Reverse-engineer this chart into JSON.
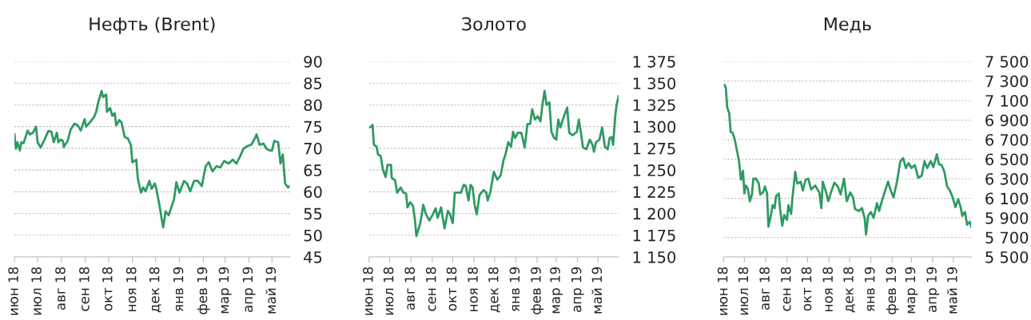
{
  "chart_data": [
    {
      "type": "line",
      "title": "Нефть (Brent)",
      "grid": "y",
      "xlim": [
        "2018-06-01",
        "2019-05-24"
      ],
      "ylim": [
        45,
        90
      ],
      "yticks": [
        45,
        50,
        55,
        60,
        65,
        70,
        75,
        80,
        85,
        90
      ],
      "xticks": [
        {
          "value": "2018-06-01",
          "label": "июн 18"
        },
        {
          "value": "2018-07-01",
          "label": "июл 18"
        },
        {
          "value": "2018-08-01",
          "label": "авг 18"
        },
        {
          "value": "2018-09-01",
          "label": "сен 18"
        },
        {
          "value": "2018-10-01",
          "label": "окт 18"
        },
        {
          "value": "2018-11-01",
          "label": "ноя 18"
        },
        {
          "value": "2018-12-01",
          "label": "дек 18"
        },
        {
          "value": "2019-01-01",
          "label": "янв 19"
        },
        {
          "value": "2019-02-01",
          "label": "фев 19"
        },
        {
          "value": "2019-03-01",
          "label": "мар 19"
        },
        {
          "value": "2019-04-01",
          "label": "апр 19"
        },
        {
          "value": "2019-05-01",
          "label": "май 19"
        }
      ],
      "series": [
        {
          "color": "#2e9a62",
          "x": [
            "2018-06-01",
            "2018-06-03",
            "2018-06-05",
            "2018-06-08",
            "2018-06-10",
            "2018-06-13",
            "2018-06-18",
            "2018-06-21",
            "2018-06-25",
            "2018-06-29",
            "2018-07-01",
            "2018-07-05",
            "2018-07-10",
            "2018-07-15",
            "2018-07-19",
            "2018-07-22",
            "2018-07-26",
            "2018-07-28",
            "2018-07-31",
            "2018-08-03",
            "2018-08-04",
            "2018-08-09",
            "2018-08-13",
            "2018-08-18",
            "2018-08-22",
            "2018-08-26",
            "2018-08-31",
            "2018-09-02",
            "2018-09-07",
            "2018-09-12",
            "2018-09-15",
            "2018-09-18",
            "2018-09-22",
            "2018-09-24",
            "2018-09-28",
            "2018-09-29",
            "2018-10-03",
            "2018-10-06",
            "2018-10-09",
            "2018-10-11",
            "2018-10-15",
            "2018-10-18",
            "2018-10-22",
            "2018-10-26",
            "2018-10-30",
            "2018-11-01",
            "2018-11-06",
            "2018-11-08",
            "2018-11-12",
            "2018-11-15",
            "2018-11-18",
            "2018-11-23",
            "2018-11-26",
            "2018-11-30",
            "2018-12-02",
            "2018-12-06",
            "2018-12-09",
            "2018-12-11",
            "2018-12-14",
            "2018-12-18",
            "2018-12-25",
            "2018-12-28",
            "2019-01-01",
            "2019-01-07",
            "2019-01-11",
            "2019-01-15",
            "2019-01-20",
            "2019-01-25",
            "2019-01-30",
            "2019-02-04",
            "2019-02-08",
            "2019-02-13",
            "2019-02-18",
            "2019-02-23",
            "2019-02-28",
            "2019-03-06",
            "2019-03-11",
            "2019-03-16",
            "2019-03-21",
            "2019-03-25",
            "2019-03-30",
            "2019-04-04",
            "2019-04-08",
            "2019-04-11",
            "2019-04-15",
            "2019-04-20",
            "2019-04-24",
            "2019-04-28",
            "2019-05-01",
            "2019-05-04",
            "2019-05-09",
            "2019-05-12",
            "2019-05-15",
            "2019-05-18",
            "2019-05-22",
            "2019-05-24"
          ],
          "values": [
            73.2,
            69.9,
            71.4,
            69.5,
            71.4,
            71.2,
            74.1,
            73.2,
            73.6,
            75.0,
            71.4,
            70.2,
            72.0,
            74.0,
            73.8,
            71.4,
            73.6,
            71.4,
            72.0,
            71.7,
            70.3,
            71.7,
            74.4,
            75.7,
            75.3,
            74.1,
            76.7,
            75.0,
            76.0,
            77.1,
            78.4,
            80.8,
            83.2,
            81.8,
            82.4,
            78.4,
            79.3,
            77.5,
            78.1,
            75.3,
            76.5,
            75.9,
            72.6,
            72.3,
            70.8,
            66.8,
            67.4,
            63.1,
            59.8,
            61.0,
            60.1,
            62.5,
            60.7,
            61.9,
            60.7,
            57.0,
            53.7,
            51.8,
            55.5,
            54.6,
            58.3,
            62.2,
            59.8,
            62.5,
            61.9,
            60.1,
            62.5,
            62.5,
            61.3,
            65.9,
            66.8,
            64.7,
            65.9,
            65.6,
            67.1,
            66.5,
            67.4,
            66.5,
            68.3,
            69.9,
            70.5,
            70.8,
            72.0,
            73.2,
            70.8,
            71.1,
            69.9,
            69.5,
            69.5,
            71.7,
            71.4,
            66.5,
            68.6,
            61.9,
            61.0,
            61.3
          ]
        }
      ]
    },
    {
      "type": "line",
      "title": "Золото",
      "grid": "y",
      "xlim": [
        "2018-06-01",
        "2019-05-31"
      ],
      "ylim": [
        1150,
        1375
      ],
      "yticks": [
        {
          "value": 1150,
          "label": "1 150"
        },
        {
          "value": 1175,
          "label": "1 175"
        },
        {
          "value": 1200,
          "label": "1 200"
        },
        {
          "value": 1225,
          "label": "1 225"
        },
        {
          "value": 1250,
          "label": "1 250"
        },
        {
          "value": 1275,
          "label": "1 275"
        },
        {
          "value": 1300,
          "label": "1 300"
        },
        {
          "value": 1325,
          "label": "1 325"
        },
        {
          "value": 1350,
          "label": "1 350"
        },
        {
          "value": 1375,
          "label": "1 375"
        }
      ],
      "xticks": [
        {
          "value": "2018-06-01",
          "label": "июн 18"
        },
        {
          "value": "2018-07-01",
          "label": "июл 18"
        },
        {
          "value": "2018-08-01",
          "label": "авг 18"
        },
        {
          "value": "2018-09-01",
          "label": "сен 18"
        },
        {
          "value": "2018-10-01",
          "label": "окт 18"
        },
        {
          "value": "2018-11-01",
          "label": "ноя 18"
        },
        {
          "value": "2018-12-01",
          "label": "дек 18"
        },
        {
          "value": "2019-01-01",
          "label": "янв 19"
        },
        {
          "value": "2019-02-01",
          "label": "фев 19"
        },
        {
          "value": "2019-03-01",
          "label": "мар 19"
        },
        {
          "value": "2019-04-01",
          "label": "апр 19"
        },
        {
          "value": "2019-05-01",
          "label": "май 19"
        }
      ],
      "series": [
        {
          "color": "#2e9a62",
          "x": [
            "2018-06-01",
            "2018-06-04",
            "2018-06-06",
            "2018-06-08",
            "2018-06-12",
            "2018-06-14",
            "2018-06-18",
            "2018-06-21",
            "2018-06-25",
            "2018-06-28",
            "2018-07-03",
            "2018-07-04",
            "2018-07-09",
            "2018-07-12",
            "2018-07-17",
            "2018-07-21",
            "2018-07-25",
            "2018-07-27",
            "2018-07-31",
            "2018-08-04",
            "2018-08-07",
            "2018-08-09",
            "2018-08-14",
            "2018-08-16",
            "2018-08-19",
            "2018-08-23",
            "2018-08-28",
            "2018-09-02",
            "2018-09-06",
            "2018-09-09",
            "2018-09-14",
            "2018-09-19",
            "2018-09-24",
            "2018-09-27",
            "2018-10-01",
            "2018-10-04",
            "2018-10-09",
            "2018-10-13",
            "2018-10-17",
            "2018-10-20",
            "2018-10-24",
            "2018-10-27",
            "2018-10-30",
            "2018-11-02",
            "2018-11-05",
            "2018-11-09",
            "2018-11-15",
            "2018-11-19",
            "2018-11-21",
            "2018-11-25",
            "2018-11-28",
            "2018-11-30",
            "2018-12-05",
            "2018-12-10",
            "2018-12-14",
            "2018-12-17",
            "2018-12-21",
            "2018-12-25",
            "2018-12-28",
            "2018-12-31",
            "2019-01-04",
            "2019-01-09",
            "2019-01-14",
            "2019-01-18",
            "2019-01-22",
            "2019-01-25",
            "2019-01-29",
            "2019-02-02",
            "2019-02-06",
            "2019-02-09",
            "2019-02-12",
            "2019-02-15",
            "2019-02-19",
            "2019-02-22",
            "2019-02-26",
            "2019-03-01",
            "2019-03-04",
            "2019-03-07",
            "2019-03-11",
            "2019-03-17",
            "2019-03-20",
            "2019-03-25",
            "2019-03-31",
            "2019-04-03",
            "2019-04-06",
            "2019-04-09",
            "2019-04-14",
            "2019-04-19",
            "2019-04-23",
            "2019-04-25",
            "2019-04-28",
            "2019-05-03",
            "2019-05-07",
            "2019-05-11",
            "2019-05-15",
            "2019-05-18",
            "2019-05-21",
            "2019-05-23",
            "2019-05-26",
            "2019-05-28",
            "2019-05-31"
          ],
          "values": [
            1299,
            1300,
            1302,
            1279,
            1277,
            1268,
            1266,
            1251,
            1242,
            1256,
            1256,
            1241,
            1238,
            1224,
            1230,
            1224,
            1223,
            1207,
            1213,
            1209,
            1192,
            1174,
            1187,
            1195,
            1210,
            1199,
            1192,
            1199,
            1206,
            1195,
            1207,
            1183,
            1203,
            1199,
            1189,
            1224,
            1224,
            1224,
            1233,
            1232,
            1215,
            1233,
            1230,
            1210,
            1199,
            1221,
            1227,
            1224,
            1215,
            1225,
            1239,
            1248,
            1239,
            1244,
            1261,
            1268,
            1282,
            1277,
            1294,
            1287,
            1293,
            1293,
            1276,
            1303,
            1303,
            1320,
            1308,
            1312,
            1306,
            1326,
            1341,
            1325,
            1328,
            1294,
            1287,
            1285,
            1308,
            1299,
            1309,
            1322,
            1293,
            1290,
            1294,
            1308,
            1293,
            1276,
            1274,
            1285,
            1279,
            1271,
            1282,
            1285,
            1299,
            1277,
            1274,
            1287,
            1288,
            1279,
            1311,
            1325,
            1335
          ]
        }
      ]
    },
    {
      "type": "line",
      "title": "Медь",
      "grid": "y",
      "xlim": [
        "2018-06-01",
        "2019-05-27"
      ],
      "ylim": [
        5500,
        7500
      ],
      "yticks": [
        {
          "value": 5500,
          "label": "5 500"
        },
        {
          "value": 5700,
          "label": "5 700"
        },
        {
          "value": 5900,
          "label": "5 900"
        },
        {
          "value": 6100,
          "label": "6 100"
        },
        {
          "value": 6300,
          "label": "6 300"
        },
        {
          "value": 6500,
          "label": "6 500"
        },
        {
          "value": 6700,
          "label": "6 700"
        },
        {
          "value": 6900,
          "label": "6 900"
        },
        {
          "value": 7100,
          "label": "7 100"
        },
        {
          "value": 7300,
          "label": "7 300"
        },
        {
          "value": 7500,
          "label": "7 500"
        }
      ],
      "xticks": [
        {
          "value": "2018-06-01",
          "label": "июн 18"
        },
        {
          "value": "2018-07-01",
          "label": "июл 18"
        },
        {
          "value": "2018-08-01",
          "label": "авг 18"
        },
        {
          "value": "2018-09-01",
          "label": "сен 18"
        },
        {
          "value": "2018-10-01",
          "label": "окт 18"
        },
        {
          "value": "2018-11-01",
          "label": "ноя 18"
        },
        {
          "value": "2018-12-01",
          "label": "дек 18"
        },
        {
          "value": "2019-01-01",
          "label": "янв 19"
        },
        {
          "value": "2019-02-01",
          "label": "фев 19"
        },
        {
          "value": "2019-03-01",
          "label": "мар 19"
        },
        {
          "value": "2019-04-01",
          "label": "апр 19"
        },
        {
          "value": "2019-05-01",
          "label": "май 19"
        }
      ],
      "series": [
        {
          "color": "#2e9a62",
          "x": [
            "2018-06-02",
            "2018-06-04",
            "2018-06-06",
            "2018-06-09",
            "2018-06-11",
            "2018-06-14",
            "2018-06-17",
            "2018-06-19",
            "2018-06-23",
            "2018-06-26",
            "2018-06-29",
            "2018-07-01",
            "2018-07-03",
            "2018-07-06",
            "2018-07-09",
            "2018-07-12",
            "2018-07-14",
            "2018-07-18",
            "2018-07-22",
            "2018-07-24",
            "2018-07-28",
            "2018-07-31",
            "2018-08-03",
            "2018-08-05",
            "2018-08-09",
            "2018-08-11",
            "2018-08-14",
            "2018-08-16",
            "2018-08-20",
            "2018-08-22",
            "2018-08-25",
            "2018-08-28",
            "2018-09-01",
            "2018-09-03",
            "2018-09-07",
            "2018-09-09",
            "2018-09-13",
            "2018-09-16",
            "2018-09-21",
            "2018-09-24",
            "2018-09-28",
            "2018-10-02",
            "2018-10-06",
            "2018-10-12",
            "2018-10-18",
            "2018-10-21",
            "2018-10-23",
            "2018-10-28",
            "2018-10-31",
            "2018-11-04",
            "2018-11-09",
            "2018-11-14",
            "2018-11-18",
            "2018-11-23",
            "2018-11-27",
            "2018-12-02",
            "2018-12-06",
            "2018-12-09",
            "2018-12-15",
            "2018-12-19",
            "2018-12-23",
            "2018-12-25",
            "2018-12-28",
            "2019-01-01",
            "2019-01-05",
            "2019-01-10",
            "2019-01-13",
            "2019-01-17",
            "2019-01-21",
            "2019-01-26",
            "2019-01-30",
            "2019-02-03",
            "2019-02-08",
            "2019-02-11",
            "2019-02-13",
            "2019-02-17",
            "2019-02-21",
            "2019-02-25",
            "2019-03-01",
            "2019-03-06",
            "2019-03-11",
            "2019-03-16",
            "2019-03-20",
            "2019-03-24",
            "2019-03-29",
            "2019-04-02",
            "2019-04-07",
            "2019-04-10",
            "2019-04-14",
            "2019-04-18",
            "2019-04-22",
            "2019-04-26",
            "2019-04-30",
            "2019-05-04",
            "2019-05-08",
            "2019-05-12",
            "2019-05-14",
            "2019-05-18",
            "2019-05-21",
            "2019-05-25",
            "2019-05-27"
          ],
          "values": [
            7260,
            7230,
            7030,
            6970,
            6780,
            6770,
            6700,
            6630,
            6490,
            6290,
            6380,
            6150,
            6230,
            6200,
            6070,
            6140,
            6300,
            6300,
            6250,
            6140,
            6160,
            6220,
            6150,
            5810,
            5940,
            6030,
            6000,
            6120,
            6150,
            5990,
            5820,
            5930,
            5880,
            6030,
            5940,
            6110,
            6370,
            6250,
            6270,
            6180,
            6290,
            6300,
            6190,
            6230,
            6160,
            6000,
            6270,
            6160,
            6070,
            6160,
            6260,
            6220,
            6140,
            6300,
            6070,
            6160,
            6110,
            5990,
            5970,
            6000,
            5900,
            5730,
            5920,
            5960,
            5900,
            6050,
            5970,
            6070,
            6160,
            6270,
            6180,
            6110,
            6270,
            6400,
            6480,
            6510,
            6410,
            6460,
            6410,
            6440,
            6310,
            6330,
            6480,
            6410,
            6480,
            6420,
            6550,
            6450,
            6440,
            6370,
            6220,
            6180,
            6110,
            6010,
            6090,
            6000,
            5920,
            5960,
            5830,
            5860,
            5810
          ]
        }
      ]
    }
  ]
}
